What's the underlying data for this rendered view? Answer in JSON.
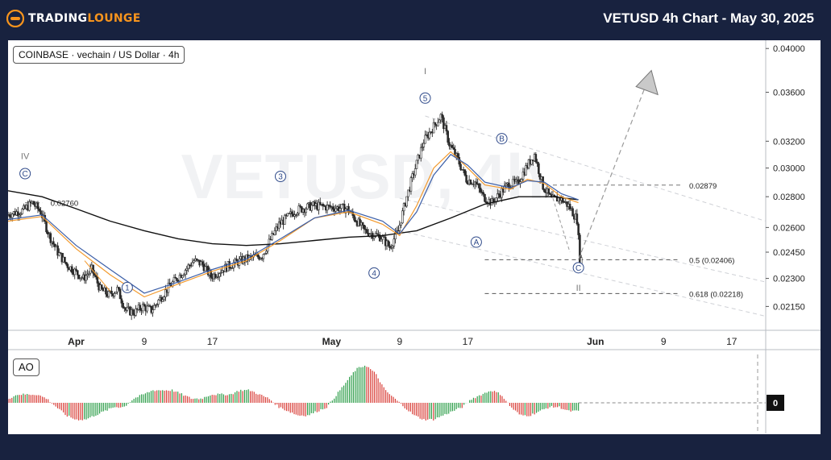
{
  "header": {
    "logo_text_main": "TRADING",
    "logo_text_accent": "LOUNGE",
    "title": "VETUSD 4h Chart - May 30, 2025"
  },
  "chart": {
    "symbol_label": "COINBASE · vechain / US Dollar · 4h",
    "watermark": "VETUSD, 4h",
    "ao_label": "AO",
    "ao_zero_label": "0"
  },
  "colors": {
    "background": "#18223f",
    "logo_accent": "#f7941d",
    "candle": "#2a2a2a",
    "ma_black": "#111111",
    "ma_orange": "#f29a2e",
    "ma_blue": "#3c5fa8",
    "ao_up": "#2e9e4a",
    "ao_down": "#d9403a",
    "wave_label": "#2f4a8a"
  },
  "chart_data": {
    "type": "line",
    "title": "VETUSD 4h Chart - May 30, 2025",
    "xlabel": "",
    "ylabel": "",
    "ylim": [
      0.0203,
      0.0408
    ],
    "y_scale": "log",
    "y_ticks": [
      "0.04000",
      "0.03600",
      "0.03200",
      "0.03000",
      "0.02800",
      "0.02600",
      "0.02450",
      "0.02300",
      "0.02150"
    ],
    "x_ticks": [
      "Apr",
      "9",
      "17",
      "May",
      "9",
      "17",
      "Jun",
      "9",
      "17"
    ],
    "x_tick_dates": [
      "2025-04-01",
      "2025-04-09",
      "2025-04-17",
      "2025-05-01",
      "2025-05-09",
      "2025-05-17",
      "2025-06-01",
      "2025-06-09",
      "2025-06-17"
    ],
    "xlim": [
      "2025-03-24",
      "2025-06-21"
    ],
    "series": [
      {
        "name": "",
        "kind": "price",
        "x": [
          "2025-03-24",
          "2025-03-26",
          "2025-03-27",
          "2025-03-28",
          "2025-03-29",
          "2025-03-30",
          "2025-03-31",
          "2025-04-02",
          "2025-04-03",
          "2025-04-04",
          "2025-04-05",
          "2025-04-06",
          "2025-04-07",
          "2025-04-08",
          "2025-04-09",
          "2025-04-10",
          "2025-04-12",
          "2025-04-14",
          "2025-04-15",
          "2025-04-16",
          "2025-04-17",
          "2025-04-19",
          "2025-04-21",
          "2025-04-23",
          "2025-04-25",
          "2025-04-27",
          "2025-04-29",
          "2025-05-01",
          "2025-05-03",
          "2025-05-05",
          "2025-05-07",
          "2025-05-08",
          "2025-05-09",
          "2025-05-10",
          "2025-05-11",
          "2025-05-12",
          "2025-05-13",
          "2025-05-14",
          "2025-05-15",
          "2025-05-16",
          "2025-05-17",
          "2025-05-18",
          "2025-05-19",
          "2025-05-20",
          "2025-05-22",
          "2025-05-23",
          "2025-05-24",
          "2025-05-25",
          "2025-05-26",
          "2025-05-27",
          "2025-05-28",
          "2025-05-29",
          "2025-05-30",
          "2025-05-30T08:00"
        ],
        "y": [
          0.0268,
          0.0271,
          0.0276,
          0.027,
          0.0255,
          0.0245,
          0.0238,
          0.023,
          0.0235,
          0.0224,
          0.0221,
          0.0224,
          0.0213,
          0.0212,
          0.0215,
          0.0213,
          0.0225,
          0.0235,
          0.024,
          0.0238,
          0.0231,
          0.0237,
          0.0241,
          0.0243,
          0.0262,
          0.0271,
          0.0274,
          0.0273,
          0.0272,
          0.0258,
          0.0254,
          0.0248,
          0.0258,
          0.028,
          0.03,
          0.032,
          0.033,
          0.034,
          0.0318,
          0.0306,
          0.0292,
          0.029,
          0.028,
          0.0276,
          0.0289,
          0.0289,
          0.03,
          0.031,
          0.0287,
          0.0278,
          0.0279,
          0.0274,
          0.0265,
          0.0241
        ]
      },
      {
        "name": "",
        "kind": "moving-average",
        "color": "#111111",
        "x": [
          "2025-03-24",
          "2025-03-28",
          "2025-04-01",
          "2025-04-05",
          "2025-04-09",
          "2025-04-13",
          "2025-04-17",
          "2025-04-21",
          "2025-04-25",
          "2025-04-29",
          "2025-05-03",
          "2025-05-07",
          "2025-05-11",
          "2025-05-15",
          "2025-05-19",
          "2025-05-23",
          "2025-05-27",
          "2025-05-30"
        ],
        "y": [
          0.0284,
          0.028,
          0.0272,
          0.0264,
          0.0258,
          0.0253,
          0.025,
          0.0249,
          0.025,
          0.0252,
          0.0254,
          0.0255,
          0.0258,
          0.0266,
          0.0275,
          0.028,
          0.028,
          0.0278
        ]
      },
      {
        "name": "",
        "kind": "moving-average",
        "color": "#f29a2e",
        "x": [
          "2025-03-24",
          "2025-03-28",
          "2025-04-01",
          "2025-04-05",
          "2025-04-09",
          "2025-04-13",
          "2025-04-17",
          "2025-04-21",
          "2025-04-25",
          "2025-04-29",
          "2025-05-03",
          "2025-05-07",
          "2025-05-09",
          "2025-05-11",
          "2025-05-13",
          "2025-05-15",
          "2025-05-17",
          "2025-05-19",
          "2025-05-22",
          "2025-05-24",
          "2025-05-26",
          "2025-05-28",
          "2025-05-30"
        ],
        "y": [
          0.0264,
          0.0267,
          0.0247,
          0.0232,
          0.022,
          0.0227,
          0.0234,
          0.024,
          0.0252,
          0.0266,
          0.027,
          0.0262,
          0.0255,
          0.0274,
          0.03,
          0.0312,
          0.03,
          0.0288,
          0.0285,
          0.0292,
          0.0289,
          0.028,
          0.0276
        ]
      },
      {
        "name": "",
        "kind": "moving-average",
        "color": "#3c5fa8",
        "x": [
          "2025-03-24",
          "2025-03-28",
          "2025-04-01",
          "2025-04-05",
          "2025-04-09",
          "2025-04-13",
          "2025-04-17",
          "2025-04-21",
          "2025-04-25",
          "2025-04-29",
          "2025-05-03",
          "2025-05-07",
          "2025-05-09",
          "2025-05-11",
          "2025-05-13",
          "2025-05-15",
          "2025-05-17",
          "2025-05-19",
          "2025-05-22",
          "2025-05-24",
          "2025-05-26",
          "2025-05-28",
          "2025-05-30"
        ],
        "y": [
          0.0265,
          0.0268,
          0.0249,
          0.0235,
          0.0222,
          0.0228,
          0.0235,
          0.0241,
          0.0253,
          0.0266,
          0.0271,
          0.0264,
          0.0256,
          0.027,
          0.0295,
          0.031,
          0.0302,
          0.029,
          0.0286,
          0.0291,
          0.029,
          0.0282,
          0.0278
        ]
      }
    ],
    "wave_labels": [
      {
        "text": "IV",
        "x": "2025-03-26",
        "y": 0.0309
      },
      {
        "text": "C",
        "x": "2025-03-26",
        "y": 0.0296,
        "circled": true
      },
      {
        "text": "1",
        "x": "2025-04-07",
        "y": 0.0225,
        "circled": true
      },
      {
        "text": "3",
        "x": "2025-04-25",
        "y": 0.0294,
        "circled": true
      },
      {
        "text": "4",
        "x": "2025-05-06",
        "y": 0.0233,
        "circled": true
      },
      {
        "text": "I",
        "x": "2025-05-12",
        "y": 0.0379
      },
      {
        "text": "5",
        "x": "2025-05-12",
        "y": 0.0355,
        "circled": true
      },
      {
        "text": "A",
        "x": "2025-05-18",
        "y": 0.0251,
        "circled": true
      },
      {
        "text": "B",
        "x": "2025-05-21",
        "y": 0.0322,
        "circled": true
      },
      {
        "text": "C",
        "x": "2025-05-30",
        "y": 0.0236,
        "circled": true
      },
      {
        "text": "II",
        "x": "2025-05-30",
        "y": 0.0225
      }
    ],
    "annotations": [
      {
        "text": "0.02760",
        "kind": "level",
        "y": 0.0276
      },
      {
        "text": "0.02879",
        "kind": "level",
        "y": 0.02879
      },
      {
        "text": "0.5 (0.02406)",
        "kind": "fib-retracement",
        "y": 0.02406
      },
      {
        "text": "0.618 (0.02218)",
        "kind": "fib-retracement",
        "y": 0.02218
      }
    ],
    "projection": {
      "from": {
        "x": "2025-05-30",
        "y": 0.02406
      },
      "to": {
        "x": "2025-06-07",
        "y": 0.0375
      }
    },
    "channel": [
      {
        "from": {
          "x": "2025-05-12",
          "y": 0.034
        },
        "to": {
          "x": "2025-06-21",
          "y": 0.0264
        }
      },
      {
        "from": {
          "x": "2025-05-09",
          "y": 0.0279
        },
        "to": {
          "x": "2025-06-21",
          "y": 0.0228
        }
      },
      {
        "from": {
          "x": "2025-05-09",
          "y": 0.0258
        },
        "to": {
          "x": "2025-06-21",
          "y": 0.021
        }
      }
    ],
    "ao": {
      "name": "AO",
      "ylim": [
        -1,
        1
      ],
      "zero_label": "0",
      "values": [
        0.1,
        0.2,
        0.2,
        0.2,
        0.1,
        -0.1,
        -0.3,
        -0.4,
        -0.4,
        -0.3,
        -0.2,
        -0.1,
        -0.1,
        0.1,
        0.2,
        0.3,
        0.3,
        0.3,
        0.2,
        0.1,
        0.1,
        0.2,
        0.2,
        0.2,
        0.3,
        0.3,
        0.2,
        0.1,
        -0.1,
        -0.2,
        -0.3,
        -0.3,
        -0.2,
        -0.1,
        0.2,
        0.5,
        0.8,
        0.9,
        0.7,
        0.3,
        0.1,
        -0.1,
        -0.3,
        -0.4,
        -0.4,
        -0.3,
        -0.2,
        -0.1,
        0.1,
        0.2,
        0.3,
        0.2,
        -0.1,
        -0.3,
        -0.3,
        -0.2,
        -0.1,
        -0.1,
        -0.2,
        -0.2
      ]
    }
  }
}
